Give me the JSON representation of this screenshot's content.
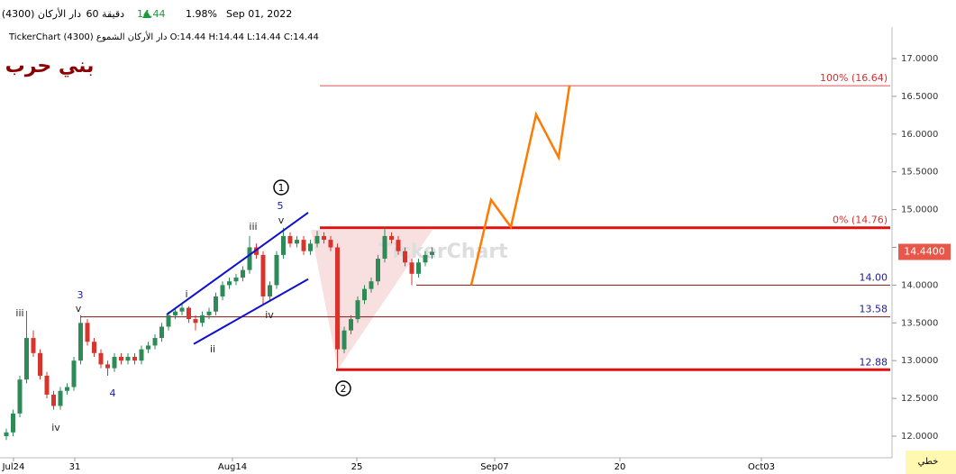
{
  "header": {
    "symbol": "دار الأركان (4300)",
    "interval": "60 دقيقة",
    "last": "14.44",
    "change_pct": "1.98%",
    "date": "Sep 01, 2022",
    "info": "TickerChart دار الأركان الشموع (4300) O:14.44 H:14.44 L:14.44 C:14.44",
    "watermark": "TickerChart",
    "chart_mode": "خطي"
  },
  "chart_data": {
    "type": "candlestick",
    "title": "بني حرب",
    "up_color": "#2e8b57",
    "down_color": "#d9342b",
    "ylim": [
      11.8,
      17.4
    ],
    "yticks": [
      {
        "value": 12,
        "label": "12.0000"
      },
      {
        "value": 12.5,
        "label": "12.5000"
      },
      {
        "value": 13,
        "label": "13.0000"
      },
      {
        "value": 13.5,
        "label": "13.5000"
      },
      {
        "value": 14,
        "label": "14.0000"
      },
      {
        "value": 14.5,
        "label": "14.5000"
      },
      {
        "value": 15,
        "label": "15.0000"
      },
      {
        "value": 15.5,
        "label": "15.5000"
      },
      {
        "value": 16,
        "label": "16.0000"
      },
      {
        "value": 16.5,
        "label": "16.5000"
      },
      {
        "value": 17,
        "label": "17.0000"
      }
    ],
    "x_labels": [
      "Jul24",
      "31",
      "Aug14",
      "25",
      "Sep07",
      "20",
      "Oct03"
    ],
    "candles": [
      [
        12.0,
        12.1,
        11.95,
        12.05
      ],
      [
        12.05,
        12.35,
        12.0,
        12.3
      ],
      [
        12.3,
        12.8,
        12.25,
        12.75
      ],
      [
        12.75,
        13.66,
        12.7,
        13.3
      ],
      [
        13.3,
        13.4,
        13.05,
        13.1
      ],
      [
        13.1,
        13.15,
        12.75,
        12.8
      ],
      [
        12.8,
        12.85,
        12.5,
        12.55
      ],
      [
        12.55,
        12.6,
        12.35,
        12.4
      ],
      [
        12.4,
        12.65,
        12.35,
        12.6
      ],
      [
        12.6,
        12.7,
        12.55,
        12.65
      ],
      [
        12.65,
        13.05,
        12.6,
        13.0
      ],
      [
        13.0,
        13.6,
        12.95,
        13.5
      ],
      [
        13.5,
        13.55,
        13.2,
        13.25
      ],
      [
        13.25,
        13.3,
        13.05,
        13.1
      ],
      [
        13.1,
        13.15,
        12.9,
        12.95
      ],
      [
        12.95,
        13.0,
        12.8,
        12.9
      ],
      [
        12.9,
        13.1,
        12.85,
        13.05
      ],
      [
        13.05,
        13.1,
        12.95,
        13.0
      ],
      [
        13.0,
        13.1,
        12.95,
        13.05
      ],
      [
        13.05,
        13.1,
        12.95,
        13.0
      ],
      [
        13.0,
        13.2,
        12.95,
        13.15
      ],
      [
        13.15,
        13.25,
        13.1,
        13.2
      ],
      [
        13.2,
        13.35,
        13.15,
        13.3
      ],
      [
        13.3,
        13.5,
        13.25,
        13.45
      ],
      [
        13.45,
        13.65,
        13.4,
        13.6
      ],
      [
        13.6,
        13.7,
        13.55,
        13.65
      ],
      [
        13.65,
        13.75,
        13.6,
        13.7
      ],
      [
        13.7,
        13.72,
        13.5,
        13.55
      ],
      [
        13.55,
        13.6,
        13.4,
        13.5
      ],
      [
        13.5,
        13.65,
        13.45,
        13.6
      ],
      [
        13.6,
        13.7,
        13.55,
        13.65
      ],
      [
        13.65,
        13.9,
        13.6,
        13.85
      ],
      [
        13.85,
        14.05,
        13.8,
        14.0
      ],
      [
        14.0,
        14.1,
        13.95,
        14.05
      ],
      [
        14.05,
        14.15,
        14.0,
        14.1
      ],
      [
        14.1,
        14.25,
        14.05,
        14.2
      ],
      [
        14.2,
        14.65,
        14.15,
        14.5
      ],
      [
        14.5,
        14.55,
        14.35,
        14.4
      ],
      [
        14.4,
        14.45,
        13.75,
        13.85
      ],
      [
        13.85,
        14.05,
        13.8,
        14.0
      ],
      [
        14.0,
        14.45,
        13.95,
        14.4
      ],
      [
        14.4,
        14.76,
        14.35,
        14.65
      ],
      [
        14.65,
        14.7,
        14.5,
        14.55
      ],
      [
        14.55,
        14.65,
        14.5,
        14.6
      ],
      [
        14.6,
        14.65,
        14.4,
        14.45
      ],
      [
        14.45,
        14.6,
        14.4,
        14.55
      ],
      [
        14.55,
        14.72,
        14.5,
        14.65
      ],
      [
        14.65,
        14.7,
        14.55,
        14.6
      ],
      [
        14.6,
        14.65,
        14.45,
        14.5
      ],
      [
        14.5,
        14.55,
        12.88,
        13.15
      ],
      [
        13.15,
        13.45,
        13.1,
        13.4
      ],
      [
        13.4,
        13.6,
        13.35,
        13.55
      ],
      [
        13.55,
        13.85,
        13.5,
        13.8
      ],
      [
        13.8,
        14.0,
        13.75,
        13.95
      ],
      [
        13.95,
        14.1,
        13.9,
        14.05
      ],
      [
        14.05,
        14.4,
        14.0,
        14.35
      ],
      [
        14.35,
        14.76,
        14.3,
        14.65
      ],
      [
        14.65,
        14.7,
        14.55,
        14.6
      ],
      [
        14.6,
        14.65,
        14.4,
        14.45
      ],
      [
        14.45,
        14.5,
        14.25,
        14.3
      ],
      [
        14.3,
        14.35,
        14.0,
        14.15
      ],
      [
        14.15,
        14.35,
        14.1,
        14.3
      ],
      [
        14.3,
        14.45,
        14.25,
        14.4
      ],
      [
        14.4,
        14.5,
        14.35,
        14.44
      ]
    ],
    "levels": [
      {
        "value": 16.64,
        "label": "100%   (16.64)",
        "color": "#e05050",
        "label_color": "#d23030"
      },
      {
        "value": 14.76,
        "label": "0%   (14.76)",
        "color": "#e01010",
        "label_color": "#d23030"
      },
      {
        "value": 14.0,
        "label": "14.00",
        "color": "#8b1010",
        "label_color": "#1a1aa0"
      },
      {
        "value": 13.58,
        "label": "13.58",
        "color": "#8b1010",
        "label_color": "#1a1aa0"
      },
      {
        "value": 12.88,
        "label": "12.88",
        "color": "#e01010",
        "label_color": "#1a1aa0"
      }
    ],
    "projection": {
      "color": "#ff7a00",
      "values": [
        14.0,
        15.13,
        14.77,
        16.26,
        15.69,
        16.64
      ]
    },
    "channel": {
      "color": "#1010d0",
      "upper": [
        13.61,
        14.96
      ],
      "lower": [
        13.22,
        14.08
      ]
    },
    "wave_labels": [
      "iii",
      "3",
      "v",
      "4",
      "iv",
      "i",
      "ii",
      "iii",
      "5",
      "v",
      "iv",
      "1",
      "2"
    ],
    "last_price": {
      "value": 14.44,
      "label": "14.4400",
      "color": "#e8584a"
    }
  }
}
